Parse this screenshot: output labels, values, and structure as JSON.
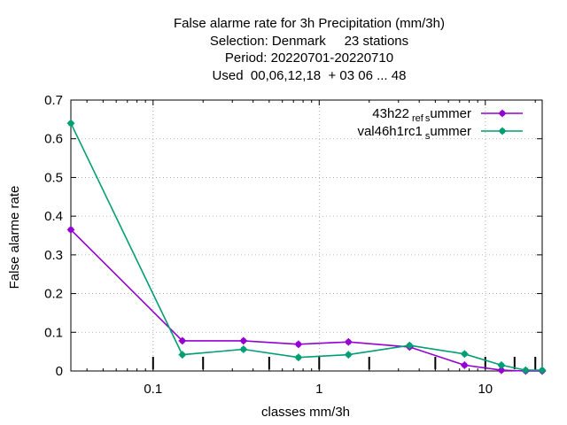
{
  "chart_data": {
    "type": "line",
    "title_lines": [
      "False alarme rate  for 3h Precipitation (mm/3h)",
      "Selection: Denmark     23 stations",
      "Period: 20220701-20220710",
      "Used  00,06,12,18  + 03 06 ... 48"
    ],
    "xlabel": "classes mm/3h",
    "ylabel": "False alarme rate",
    "xscale": "log",
    "xlim": [
      0.032,
      22
    ],
    "ylim": [
      0,
      0.7
    ],
    "x_ticks": [
      0.1,
      1,
      10
    ],
    "x_tick_labels": [
      "0.1",
      "1",
      "10"
    ],
    "y_ticks": [
      0,
      0.1,
      0.2,
      0.3,
      0.4,
      0.5,
      0.6,
      0.7
    ],
    "y_tick_labels": [
      "0",
      "0.1",
      "0.2",
      "0.3",
      "0.4",
      "0.5",
      "0.6",
      "0.7"
    ],
    "grid": true,
    "legend_position": "top-right",
    "class_markers": [
      0.1,
      0.2,
      0.5,
      1,
      2,
      5,
      10,
      15,
      20
    ],
    "series": [
      {
        "name": "43h22_ref_summer",
        "label_parts": [
          "43h22",
          "ref",
          "s",
          "ummer"
        ],
        "color": "#9400d3",
        "x": [
          0.032,
          0.15,
          0.35,
          0.75,
          1.5,
          3.5,
          7.5,
          12.5,
          17.5,
          22
        ],
        "values": [
          0.365,
          0.078,
          0.078,
          0.069,
          0.075,
          0.062,
          0.015,
          0.002,
          0.0,
          0.0
        ]
      },
      {
        "name": "val46h1rc1_summer",
        "label_parts": [
          "val46h1rc1",
          "s",
          "ummer"
        ],
        "color": "#009e73",
        "x": [
          0.032,
          0.15,
          0.35,
          0.75,
          1.5,
          3.5,
          7.5,
          12.5,
          17.5,
          22
        ],
        "values": [
          0.64,
          0.042,
          0.056,
          0.035,
          0.042,
          0.066,
          0.044,
          0.015,
          0.002,
          0.002
        ]
      }
    ]
  }
}
